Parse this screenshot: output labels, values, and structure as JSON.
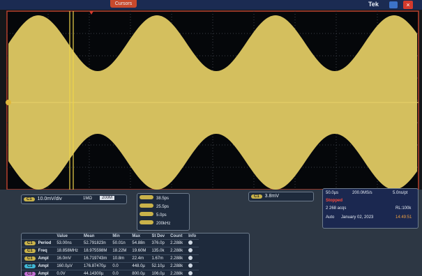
{
  "top_bar": {
    "tab": "Cursors",
    "brand": "Tek"
  },
  "channel": {
    "badge": "C1",
    "scale": "10.0mV/div",
    "impedance": "1MΩ",
    "bandwidth": "200M"
  },
  "cursor_readouts": [
    "38.5ps",
    "25.5ps",
    "5.0ps",
    "200kHz"
  ],
  "trigger": {
    "badge": "C1",
    "level": "3.8mV"
  },
  "acquisition": {
    "timebase": "50.0µs",
    "sample_rate": "200.0MS/s",
    "resolution": "5.0ns/pt",
    "state": "Stopped",
    "acqs": "2 268 acqs",
    "record_length": "RL:100k",
    "mode": "Auto",
    "date": "January 02, 2023",
    "time": "14:49:51"
  },
  "measurements": {
    "headers": [
      "Value",
      "Mean",
      "Min",
      "Max",
      "St Dev",
      "Count",
      "Info"
    ],
    "rows": [
      {
        "source": "C1",
        "name": "Period",
        "cells": [
          "53.00ns",
          "52.791823n",
          "50.01n",
          "54.88n",
          "376.0p",
          "2.288k"
        ]
      },
      {
        "source": "C1",
        "name": "Freq",
        "cells": [
          "18.858MHz",
          "18.975598M",
          "18.22M",
          "19.60M",
          "135.0k",
          "2.288k"
        ]
      },
      {
        "source": "C1",
        "name": "Ampl",
        "cells": [
          "16.0mV",
          "16.719743m",
          "10.8m",
          "22.4m",
          "1.67m",
          "2.288k"
        ]
      },
      {
        "source": "C2",
        "name": "Ampl",
        "cells": [
          "160.0µV",
          "176.87470µ",
          "0.0",
          "448.0µ",
          "52.10µ",
          "2.288k"
        ]
      },
      {
        "source": "C3",
        "name": "Ampl",
        "cells": [
          "0.0V",
          "44.14300µ",
          "0.0",
          "800.0µ",
          "106.0µ",
          "2.288k"
        ]
      }
    ]
  }
}
